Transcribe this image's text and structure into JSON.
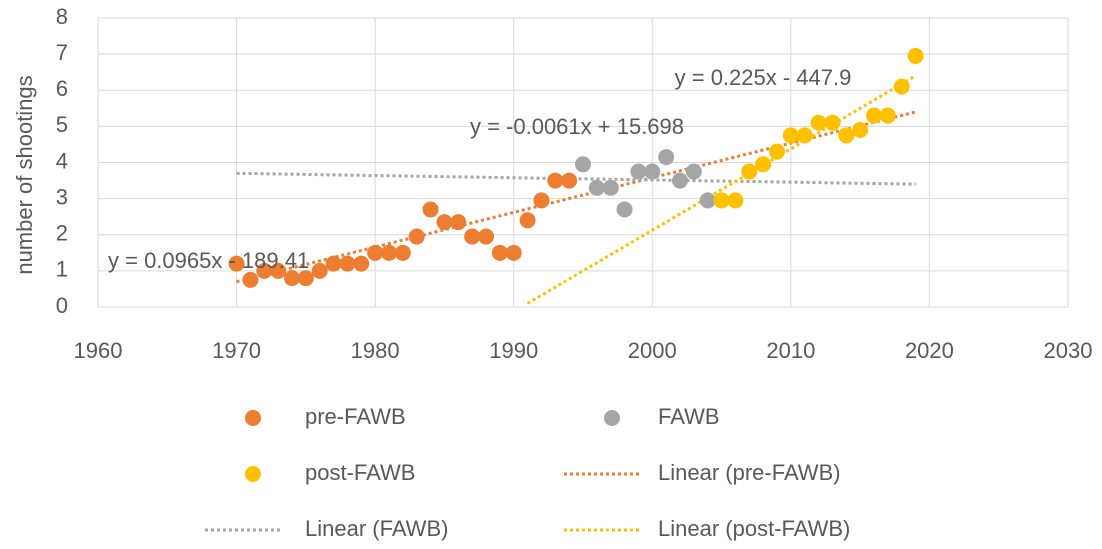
{
  "chart_data": {
    "type": "scatter",
    "y_label": "number of shootings",
    "xlim": [
      1960,
      2030
    ],
    "xticks": [
      1960,
      1970,
      1980,
      1990,
      2000,
      2010,
      2020,
      2030
    ],
    "ylim": [
      0,
      8
    ],
    "yticks": [
      0,
      1,
      2,
      3,
      4,
      5,
      6,
      7,
      8
    ],
    "grid": true,
    "series": [
      {
        "name": "pre-FAWB",
        "color": "#ED7D31",
        "x": [
          1970,
          1971,
          1972,
          1973,
          1974,
          1975,
          1976,
          1977,
          1978,
          1979,
          1980,
          1981,
          1982,
          1983,
          1984,
          1985,
          1986,
          1987,
          1988,
          1989,
          1990,
          1991,
          1992,
          1993,
          1994
        ],
        "values": [
          1.2,
          0.75,
          1.0,
          1.0,
          0.8,
          0.8,
          1.0,
          1.2,
          1.2,
          1.2,
          1.5,
          1.5,
          1.5,
          1.95,
          2.7,
          2.35,
          2.35,
          1.95,
          1.95,
          1.5,
          1.5,
          2.4,
          2.95,
          3.5,
          3.5
        ]
      },
      {
        "name": "FAWB",
        "color": "#A5A5A5",
        "x": [
          1995,
          1996,
          1997,
          1998,
          1999,
          2000,
          2001,
          2002,
          2003,
          2004
        ],
        "values": [
          3.95,
          3.3,
          3.3,
          2.7,
          3.75,
          3.75,
          4.15,
          3.5,
          3.75,
          2.95
        ]
      },
      {
        "name": "post-FAWB",
        "color": "#FFC000",
        "x": [
          2005,
          2006,
          2007,
          2008,
          2009,
          2010,
          2011,
          2012,
          2013,
          2014,
          2015,
          2016,
          2017,
          2018,
          2019
        ],
        "values": [
          2.95,
          2.95,
          3.75,
          3.95,
          4.3,
          4.75,
          4.75,
          5.1,
          5.1,
          4.75,
          4.9,
          5.3,
          5.3,
          6.1,
          6.95
        ]
      }
    ],
    "trendlines": [
      {
        "name": "Linear (pre-FAWB)",
        "color": "#ED7D31",
        "x": [
          1970,
          2019
        ],
        "values": [
          0.7,
          5.4
        ],
        "equation": "y = 0.0965x - 189.41"
      },
      {
        "name": "Linear (FAWB)",
        "color": "#A5A5A5",
        "x": [
          1970,
          2019
        ],
        "values": [
          3.7,
          3.4
        ],
        "equation": "y = -0.0061x + 15.698"
      },
      {
        "name": "Linear (post-FAWB)",
        "color": "#FFC000",
        "x": [
          1991,
          2019
        ],
        "values": [
          0.1,
          6.4
        ],
        "equation": "y = 0.225x - 447.9"
      }
    ]
  }
}
